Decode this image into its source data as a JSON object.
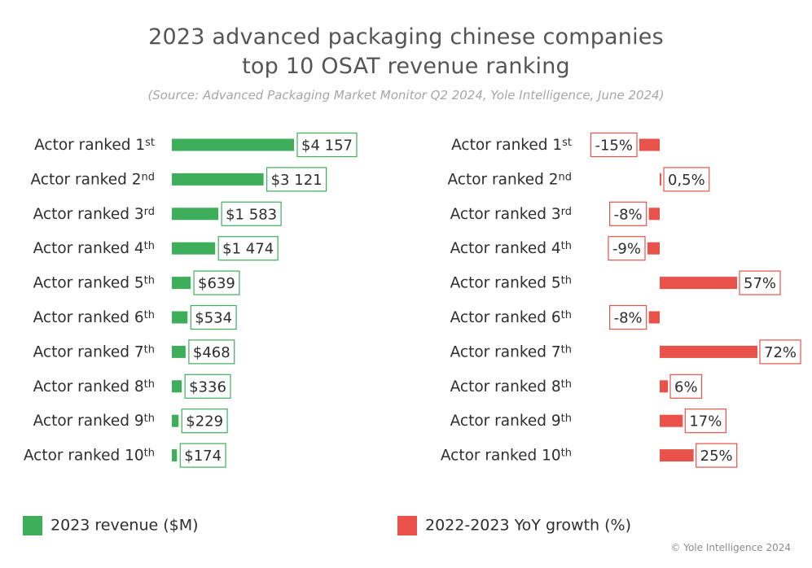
{
  "title_line1": "2023 advanced packaging chinese companies",
  "title_line2": "top 10 OSAT revenue ranking",
  "subtitle": "(Source: Advanced Packaging Market Monitor Q2 2024, Yole Intelligence, June 2024)",
  "colors": {
    "revenue": "#3fae5b",
    "growth": "#e8524a"
  },
  "chart_data": [
    {
      "type": "bar",
      "orientation": "horizontal",
      "series_name": "2023 revenue ($M)",
      "categories": [
        {
          "base": "Actor ranked 1",
          "suffix": "st"
        },
        {
          "base": "Actor ranked 2",
          "suffix": "nd"
        },
        {
          "base": "Actor ranked 3",
          "suffix": "rd"
        },
        {
          "base": "Actor ranked 4",
          "suffix": "th"
        },
        {
          "base": "Actor ranked 5",
          "suffix": "th"
        },
        {
          "base": "Actor ranked 6",
          "suffix": "th"
        },
        {
          "base": "Actor ranked 7",
          "suffix": "th"
        },
        {
          "base": "Actor ranked 8",
          "suffix": "th"
        },
        {
          "base": "Actor ranked 9",
          "suffix": "th"
        },
        {
          "base": "Actor ranked 10",
          "suffix": "th"
        }
      ],
      "values": [
        4157,
        3121,
        1583,
        1474,
        639,
        534,
        468,
        336,
        229,
        174
      ],
      "value_labels": [
        "$4 157",
        "$3 121",
        "$1 583",
        "$1 474",
        "$639",
        "$534",
        "$468",
        "$336",
        "$229",
        "$174"
      ]
    },
    {
      "type": "bar",
      "orientation": "horizontal",
      "series_name": "2022-2023 YoY growth (%)",
      "categories": [
        {
          "base": "Actor ranked 1",
          "suffix": "st"
        },
        {
          "base": "Actor ranked 2",
          "suffix": "nd"
        },
        {
          "base": "Actor ranked 3",
          "suffix": "rd"
        },
        {
          "base": "Actor ranked 4",
          "suffix": "th"
        },
        {
          "base": "Actor ranked 5",
          "suffix": "th"
        },
        {
          "base": "Actor ranked 6",
          "suffix": "th"
        },
        {
          "base": "Actor ranked 7",
          "suffix": "th"
        },
        {
          "base": "Actor ranked 8",
          "suffix": "th"
        },
        {
          "base": "Actor ranked 9",
          "suffix": "th"
        },
        {
          "base": "Actor ranked 10",
          "suffix": "th"
        }
      ],
      "values": [
        -15,
        0.5,
        -8,
        -9,
        57,
        -8,
        72,
        6,
        17,
        25
      ],
      "value_labels": [
        "-15%",
        "0,5%",
        "-8%",
        "-9%",
        "57%",
        "-8%",
        "72%",
        "6%",
        "17%",
        "25%"
      ]
    }
  ],
  "legend": {
    "revenue_label": "2023 revenue ($M)",
    "growth_label": "2022-2023 YoY growth (%)"
  },
  "copyright": "© Yole Intelligence 2024"
}
